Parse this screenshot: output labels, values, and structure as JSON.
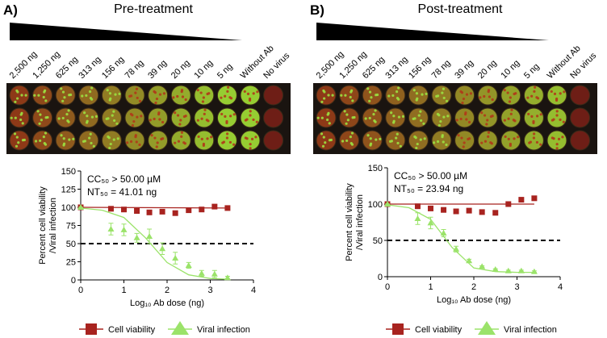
{
  "chart_data": [
    {
      "type": "scatter",
      "panel": "A)",
      "title": "Pre-treatment",
      "doses": [
        "2,500 ng",
        "1,250 ng",
        "625 ng",
        "313 ng",
        "156 ng",
        "78 ng",
        "39 ng",
        "20 ng",
        "10 ng",
        "5 ng",
        "Without Ab",
        "No virus"
      ],
      "annotations": [
        "CC₅₀ > 50.00 µM",
        "NT₅₀ = 41.01 ng"
      ],
      "xlabel": "Log₁₀ Ab dose (ng)",
      "ylabel": [
        "Percent cell viability",
        "/Viral infection"
      ],
      "xlim": [
        0,
        4
      ],
      "xticks": [
        0,
        1,
        2,
        3,
        4
      ],
      "ylim": [
        0,
        150
      ],
      "yticks": [
        0,
        25,
        50,
        75,
        100,
        125,
        150
      ],
      "hline": 50,
      "x": [
        0,
        0.7,
        1.0,
        1.3,
        1.59,
        1.89,
        2.19,
        2.5,
        2.8,
        3.1,
        3.4
      ],
      "series": [
        {
          "name": "Cell viability",
          "color": "#a8231f",
          "marker": "square",
          "values": [
            100,
            98,
            97,
            95,
            93,
            94,
            92,
            96,
            97,
            101,
            99
          ],
          "curve": {
            "x": [
              0,
              3.4
            ],
            "values": [
              100,
              99
            ]
          }
        },
        {
          "name": "Viral infection",
          "color": "#9be36a",
          "marker": "triangle",
          "values": [
            100,
            70,
            69,
            58,
            60,
            43,
            30,
            20,
            9,
            8,
            3
          ],
          "errors": [
            0,
            8,
            8,
            6,
            10,
            8,
            8,
            4,
            4,
            5,
            2
          ],
          "curve": {
            "x": [
              0,
              0.5,
              1,
              1.5,
              2,
              2.5,
              3,
              3.4
            ],
            "values": [
              99,
              96,
              86,
              58,
              24,
              7,
              2,
              1
            ]
          }
        }
      ]
    },
    {
      "type": "scatter",
      "panel": "B)",
      "title": "Post-treatment",
      "doses": [
        "2,500 ng",
        "1,250 ng",
        "625 ng",
        "313 ng",
        "156 ng",
        "78 ng",
        "39 ng",
        "20 ng",
        "10 ng",
        "5 ng",
        "Without Ab",
        "No virus"
      ],
      "annotations": [
        "CC₅₀ > 50.00 µM",
        "NT₅₀ = 23.94 ng"
      ],
      "xlabel": "Log₁₀ Ab dose (ng)",
      "ylabel": [
        "Percent cell viability",
        "/Viral infection"
      ],
      "xlim": [
        0,
        4
      ],
      "xticks": [
        0,
        1,
        2,
        3,
        4
      ],
      "ylim": [
        0,
        150
      ],
      "yticks": [
        0,
        50,
        100,
        150
      ],
      "hline": 50,
      "x": [
        0,
        0.7,
        1.0,
        1.3,
        1.59,
        1.89,
        2.19,
        2.5,
        2.8,
        3.1,
        3.4
      ],
      "series": [
        {
          "name": "Cell viability",
          "color": "#a8231f",
          "marker": "square",
          "values": [
            100,
            97,
            94,
            92,
            90,
            91,
            89,
            88,
            100,
            106,
            108
          ],
          "curve": {
            "x": [
              0,
              3.4
            ],
            "values": [
              100,
              100
            ]
          }
        },
        {
          "name": "Viral infection",
          "color": "#9be36a",
          "marker": "triangle",
          "values": [
            100,
            80,
            74,
            60,
            38,
            22,
            14,
            10,
            8,
            8,
            7
          ],
          "errors": [
            0,
            8,
            8,
            5,
            4,
            2,
            1,
            1,
            1,
            1,
            1
          ],
          "curve": {
            "x": [
              0,
              0.5,
              1,
              1.5,
              2,
              2.5,
              3,
              3.4
            ],
            "values": [
              99,
              95,
              79,
              40,
              12,
              7,
              6,
              6
            ]
          }
        }
      ]
    }
  ]
}
